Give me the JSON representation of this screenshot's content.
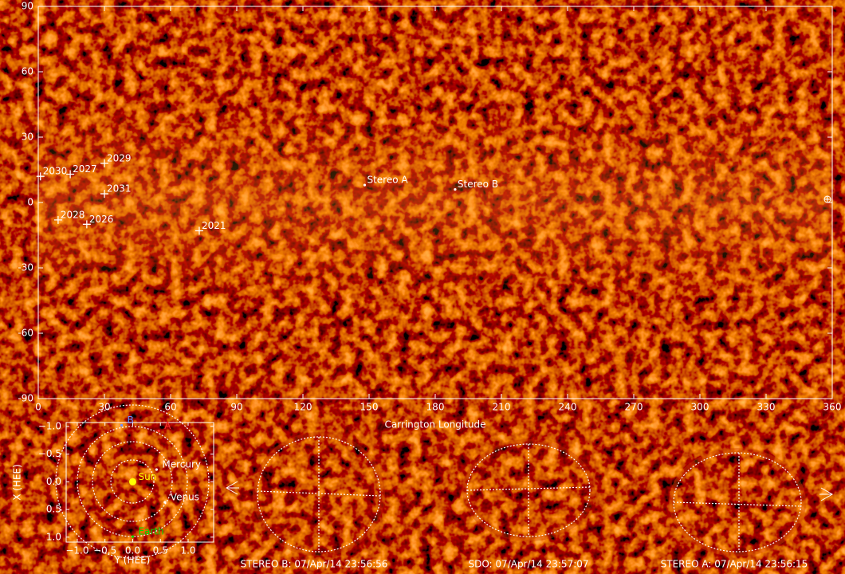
{
  "chart_data": [
    {
      "type": "scatter",
      "xlabel": "Carrington Longitude",
      "x": [
        1,
        14.5,
        30,
        30,
        9,
        22,
        73,
        148,
        189
      ],
      "y": [
        12,
        13,
        18,
        4,
        -8,
        -10,
        -13,
        8,
        6
      ],
      "labels": [
        "2030",
        "2027",
        "2029",
        "2031",
        "2028",
        "2026",
        "2021",
        "Stereo A",
        "Stereo B"
      ],
      "markers": [
        "+",
        "+",
        "+",
        "+",
        "+",
        "+",
        "+",
        ".",
        "."
      ],
      "xlim": [
        0,
        360
      ],
      "xticks": [
        0,
        30,
        60,
        90,
        120,
        150,
        180,
        210,
        240,
        270,
        300,
        330,
        360
      ],
      "ylim": [
        -90,
        90
      ],
      "yticks": [
        -90,
        -60,
        -30,
        0,
        30,
        60,
        90
      ]
    },
    {
      "type": "scatter",
      "xlabel": "Y (HEE)",
      "ylabel": "X (HEE)",
      "x": [
        0,
        0.43,
        0.58,
        0,
        0.47,
        -0.2
      ],
      "y": [
        0,
        -0.22,
        0.37,
        0.99,
        -0.92,
        -1.02
      ],
      "labels": [
        "Sun",
        "Mercury",
        "Venus",
        "Earth",
        "A",
        "B"
      ],
      "colors": [
        "#ffff00",
        "#ffffff",
        "#ffffff",
        "#00dd00",
        "#ff3030",
        "#6f8fff"
      ],
      "xlim": [
        -1.2,
        1.46
      ],
      "ylim": [
        -1.07,
        1.09
      ],
      "y_inverted": true,
      "xticks": [
        {
          "value": -1,
          "label": "−1.0"
        },
        {
          "value": -0.5,
          "label": "−0.5"
        },
        {
          "value": 0,
          "label": "0.0"
        },
        {
          "value": 0.5,
          "label": "0.5"
        },
        {
          "value": 1,
          "label": "1.0"
        }
      ],
      "yticks": [
        {
          "value": -1,
          "label": "−1.0"
        },
        {
          "value": -0.5,
          "label": "−0.5"
        },
        {
          "value": 0,
          "label": "0.0"
        },
        {
          "value": 0.5,
          "label": "0.5"
        },
        {
          "value": 1,
          "label": "1.0"
        }
      ]
    }
  ],
  "panels": [
    {
      "caption": "STEREO B: 07/Apr/14 23:56:56"
    },
    {
      "caption": "SDO: 07/Apr/14 23:57:07"
    },
    {
      "caption": "STEREO A: 07/Apr/14 23:56:15"
    }
  ]
}
